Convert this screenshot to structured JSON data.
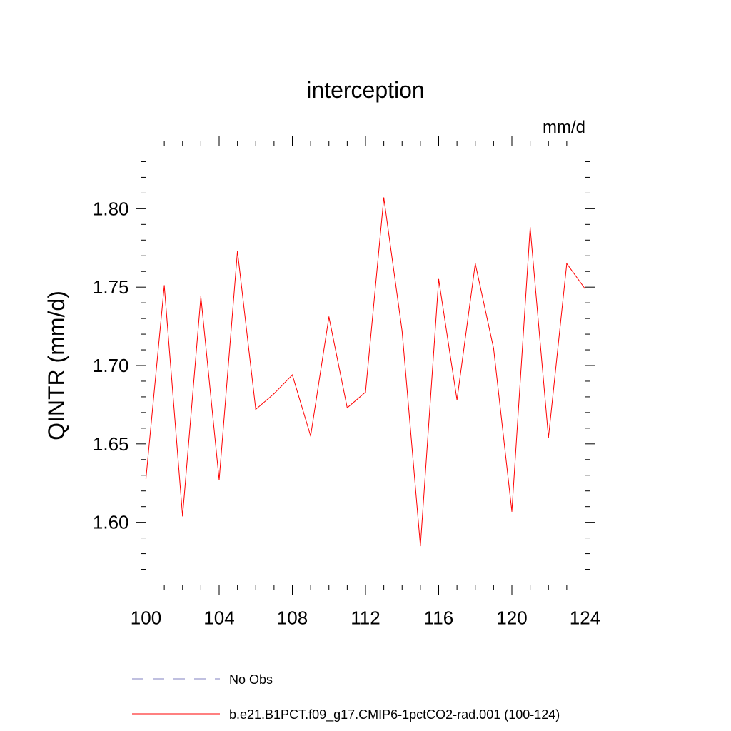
{
  "chart_data": {
    "type": "line",
    "title": "interception",
    "units_label": "mm/d",
    "ylabel": "QINTR  (mm/d)",
    "xlabel": "",
    "xlim": [
      100,
      124
    ],
    "ylim": [
      1.56,
      1.84
    ],
    "x_ticks": [
      100,
      104,
      108,
      112,
      116,
      120,
      124
    ],
    "x_tick_labels": [
      "100",
      "104",
      "108",
      "112",
      "116",
      "120",
      "124"
    ],
    "y_ticks": [
      1.6,
      1.65,
      1.7,
      1.75,
      1.8
    ],
    "y_tick_labels": [
      "1.60",
      "1.65",
      "1.70",
      "1.75",
      "1.80"
    ],
    "grid": false,
    "legend_position": "bottom",
    "series": [
      {
        "name": "No Obs",
        "color": "#8080c0",
        "dash": "dashed",
        "x": [],
        "values": []
      },
      {
        "name": "b.e21.B1PCT.f09_g17.CMIP6-1pctCO2-rad.001 (100-124)",
        "color": "#ff0000",
        "dash": "solid",
        "x": [
          100,
          101,
          102,
          103,
          104,
          105,
          106,
          107,
          108,
          109,
          110,
          111,
          112,
          113,
          114,
          115,
          116,
          117,
          118,
          119,
          120,
          121,
          122,
          123,
          124
        ],
        "values": [
          1.628,
          1.751,
          1.604,
          1.744,
          1.627,
          1.773,
          1.672,
          1.682,
          1.694,
          1.655,
          1.731,
          1.673,
          1.683,
          1.807,
          1.722,
          1.585,
          1.755,
          1.678,
          1.765,
          1.711,
          1.607,
          1.788,
          1.654,
          1.765,
          1.749
        ]
      }
    ]
  }
}
